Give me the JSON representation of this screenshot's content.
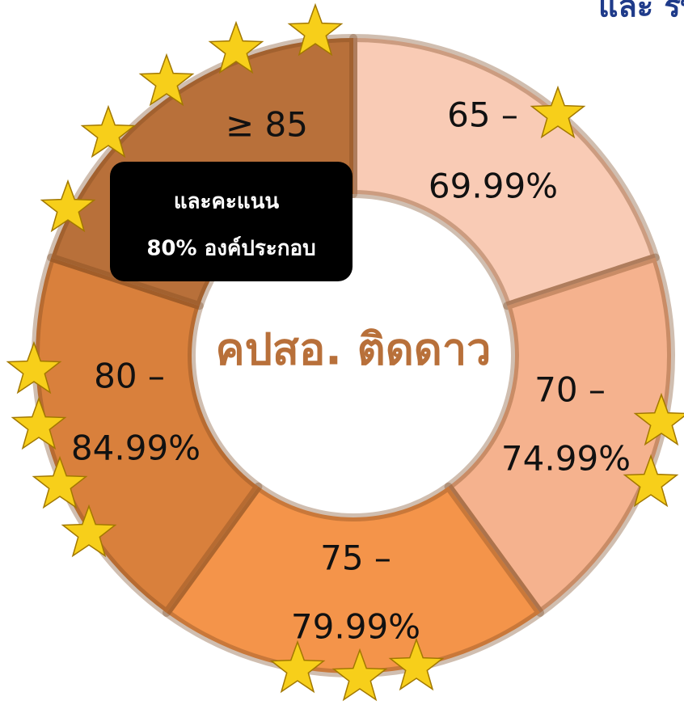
{
  "header": {
    "title": "และ รพ.สต.ติดดาว"
  },
  "center": {
    "label": "คปสอ. ติดดาว"
  },
  "note": {
    "lines": [
      "และคะแนน",
      "80% องค์ประกอบ"
    ]
  },
  "segments": [
    {
      "lines": [
        "65 –",
        "69.99%"
      ],
      "color": "#f9cbb5"
    },
    {
      "lines": [
        "70 –",
        "74.99%"
      ],
      "color": "#f5b28e"
    },
    {
      "lines": [
        "75 –",
        "79.99%"
      ],
      "color": "#f4944a"
    },
    {
      "lines": [
        "80 –",
        "84.99%"
      ],
      "color": "#d9803c"
    },
    {
      "lines": [
        "≥ 85"
      ],
      "color": "#b8703a"
    }
  ]
}
